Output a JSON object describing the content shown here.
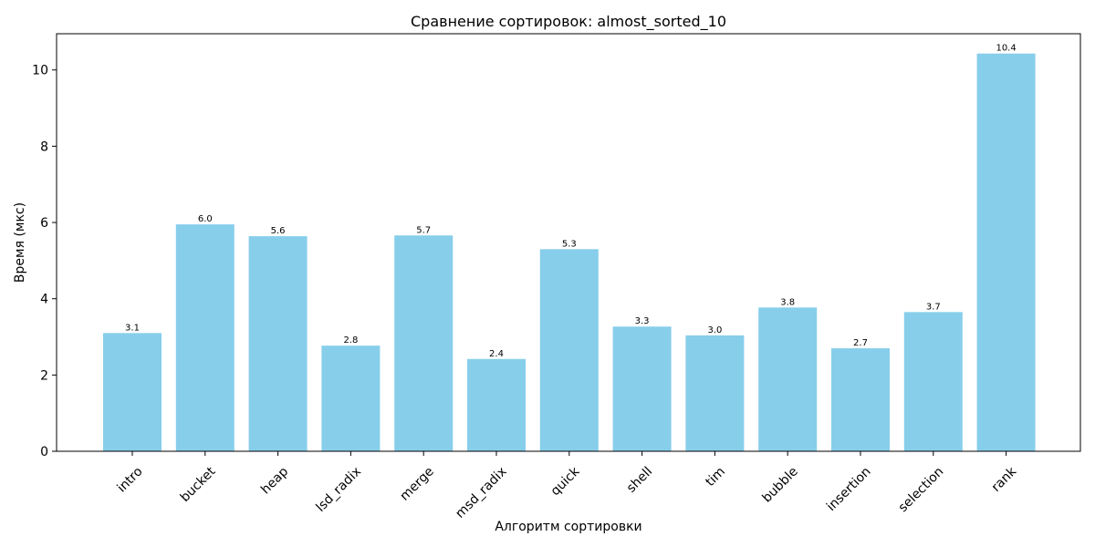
{
  "chart_data": {
    "type": "bar",
    "title": "Сравнение сортировок: almost_sorted_10",
    "xlabel": "Алгоритм сортировки",
    "ylabel": "Время (мкс)",
    "categories": [
      "intro",
      "bucket",
      "heap",
      "lsd_radix",
      "merge",
      "msd_radix",
      "quick",
      "shell",
      "tim",
      "bubble",
      "insertion",
      "selection",
      "rank"
    ],
    "values": [
      3.1,
      5.95,
      5.64,
      2.77,
      5.66,
      2.42,
      5.3,
      3.27,
      3.04,
      3.77,
      2.7,
      3.65,
      10.43
    ],
    "value_labels": [
      "3.1",
      "6.0",
      "5.6",
      "2.8",
      "5.7",
      "2.4",
      "5.3",
      "3.3",
      "3.0",
      "3.8",
      "2.7",
      "3.7",
      "10.4"
    ],
    "yticks": [
      0,
      2,
      4,
      6,
      8,
      10
    ],
    "ylim": [
      0,
      10.95
    ],
    "grid": false,
    "bar_color": "#87CEEB"
  }
}
